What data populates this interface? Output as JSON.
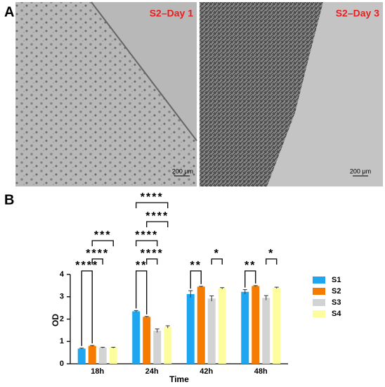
{
  "panels": {
    "a": {
      "label": "A",
      "images": [
        {
          "caption": "S2–Day 1",
          "scale_bar": "200 μm"
        },
        {
          "caption": "S2–Day 3",
          "scale_bar": "200 μm"
        }
      ]
    },
    "b": {
      "label": "B"
    }
  },
  "chart_data": {
    "type": "bar",
    "x_label": "Time",
    "y_label": "OD",
    "categories": [
      "18h",
      "24h",
      "42h",
      "48h"
    ],
    "series": [
      {
        "name": "S1",
        "color": "#1ea7f0",
        "values": [
          0.68,
          2.35,
          3.12,
          3.22
        ],
        "errors": [
          0.02,
          0.03,
          0.15,
          0.1
        ]
      },
      {
        "name": "S2",
        "color": "#f57c00",
        "values": [
          0.8,
          2.1,
          3.45,
          3.48
        ],
        "errors": [
          0.02,
          0.02,
          0.02,
          0.02
        ]
      },
      {
        "name": "S3",
        "color": "#d3d3d3",
        "values": [
          0.72,
          1.48,
          2.92,
          2.95
        ],
        "errors": [
          0.02,
          0.08,
          0.12,
          0.1
        ]
      },
      {
        "name": "S4",
        "color": "#fdfd9e",
        "values": [
          0.72,
          1.65,
          3.38,
          3.4
        ],
        "errors": [
          0.02,
          0.05,
          0.03,
          0.03
        ]
      }
    ],
    "ylim": [
      0,
      4
    ],
    "yticks": [
      0,
      1,
      2,
      3,
      4
    ],
    "grid": false,
    "legend": "right",
    "significance": [
      {
        "category": "18h",
        "from": "S1",
        "to": "S2",
        "label": "****"
      },
      {
        "category": "18h",
        "from": "S2",
        "to": "S3",
        "label": "****"
      },
      {
        "category": "18h",
        "from": "S2",
        "to": "S4",
        "label": "***"
      },
      {
        "category": "24h",
        "from": "S1",
        "to": "S2",
        "label": "**"
      },
      {
        "category": "24h",
        "from": "S2",
        "to": "S3",
        "label": "****"
      },
      {
        "category": "24h",
        "from": "S1",
        "to": "S3",
        "label": "****"
      },
      {
        "category": "24h",
        "from": "S2",
        "to": "S4",
        "label": "****"
      },
      {
        "category": "24h",
        "from": "S1",
        "to": "S4",
        "label": "****"
      },
      {
        "category": "42h",
        "from": "S1",
        "to": "S2",
        "label": "**"
      },
      {
        "category": "42h",
        "from": "S3",
        "to": "S4",
        "label": "*"
      },
      {
        "category": "48h",
        "from": "S1",
        "to": "S2",
        "label": "**"
      },
      {
        "category": "48h",
        "from": "S3",
        "to": "S4",
        "label": "*"
      }
    ]
  }
}
